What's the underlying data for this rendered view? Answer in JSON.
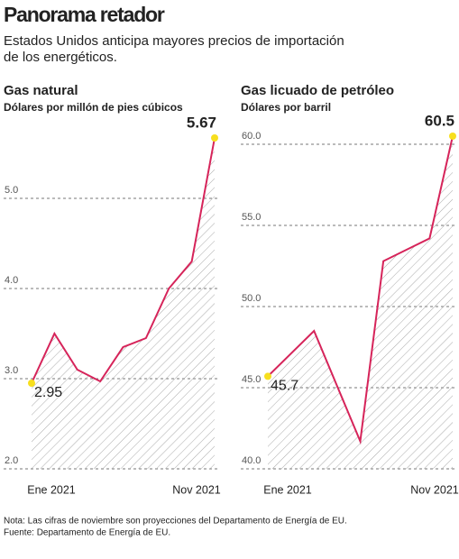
{
  "title": "Panorama retador",
  "subtitle": [
    "Estados Unidos anticipa mayores precios de importación",
    "de los energéticos."
  ],
  "notes": [
    "Nota: Las cifras de noviembre son proyecciones del Departamento de Energía de EU.",
    "Fuente: Departamento de Energía de EU."
  ],
  "chart_data": [
    {
      "type": "line",
      "title": "Gas natural",
      "subtitle": "Dólares por millón de pies cúbicos",
      "categories": [
        "Ene 2021",
        null,
        null,
        null,
        null,
        null,
        null,
        null,
        "Nov 2021"
      ],
      "values": [
        2.95,
        3.5,
        3.1,
        2.97,
        3.35,
        3.45,
        4.0,
        4.3,
        5.67
      ],
      "color": "#d6245a",
      "ylim": [
        2.0,
        6.0
      ],
      "yticks": [
        {
          "value": 2,
          "label": "2.0"
        },
        {
          "value": 3,
          "label": "3.0"
        },
        {
          "value": 4,
          "label": "4.0"
        },
        {
          "value": 5,
          "label": "5.0"
        }
      ],
      "grid": true
    },
    {
      "type": "line",
      "title": "Gas licuado de petróleo",
      "subtitle": "Dólares por barril",
      "categories": [
        "Ene 2021",
        null,
        null,
        null,
        null,
        null,
        null,
        null,
        "Nov 2021"
      ],
      "values": [
        45.7,
        47.1,
        48.5,
        45.1,
        41.7,
        52.8,
        53.5,
        54.2,
        60.5
      ],
      "color": "#d6245a",
      "ylim": [
        40,
        62
      ],
      "yticks": [
        {
          "value": 40,
          "label": "40.0"
        },
        {
          "value": 45,
          "label": "45.0"
        },
        {
          "value": 50,
          "label": "50.0"
        },
        {
          "value": 55,
          "label": "55.0"
        },
        {
          "value": 60,
          "label": "60.0"
        }
      ],
      "grid": true
    }
  ]
}
